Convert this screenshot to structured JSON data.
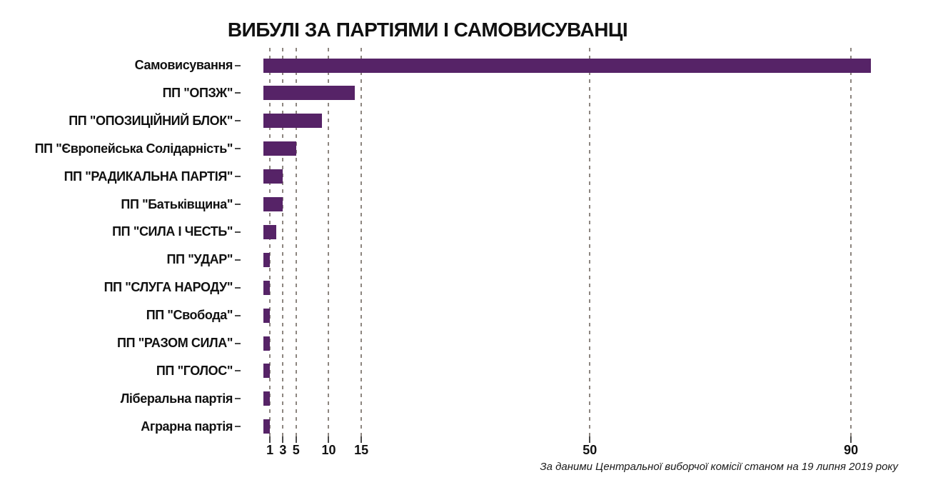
{
  "chart_data": {
    "type": "bar",
    "orientation": "horizontal",
    "title": "ВИБУЛІ ЗА ПАРТІЯМИ І САМОВИСУВАНЦІ",
    "source_note": "За даними Центральної виборчої комісії станом на 19 липня 2019 року",
    "categories": [
      "Самовисування",
      "ПП \"ОПЗЖ\"",
      "ПП \"ОПОЗИЦІЙНИЙ БЛОК\"",
      "ПП \"Європейська Солідарність\"",
      "ПП \"РАДИКАЛЬНА ПАРТІЯ\"",
      "ПП \"Батьківщина\"",
      "ПП \"СИЛА І ЧЕСТЬ\"",
      "ПП \"УДАР\"",
      "ПП \"СЛУГА НАРОДУ\"",
      "ПП \"Свобода\"",
      "ПП \"РАЗОМ СИЛА\"",
      "ПП \"ГОЛОС\"",
      "Ліберальна партія",
      "Аграрна партія"
    ],
    "values": [
      93,
      14,
      9,
      5,
      3,
      3,
      2,
      1,
      1,
      1,
      1,
      1,
      1,
      1
    ],
    "x_ticks": [
      1,
      3,
      5,
      10,
      15,
      50,
      90
    ],
    "xlim": [
      0,
      95
    ],
    "xlabel": "",
    "ylabel": "",
    "grid": "dashed-vertical",
    "legend": "none",
    "bar_color": "#562367",
    "gridline_color": "#8d8680",
    "text_color": "#111111"
  }
}
